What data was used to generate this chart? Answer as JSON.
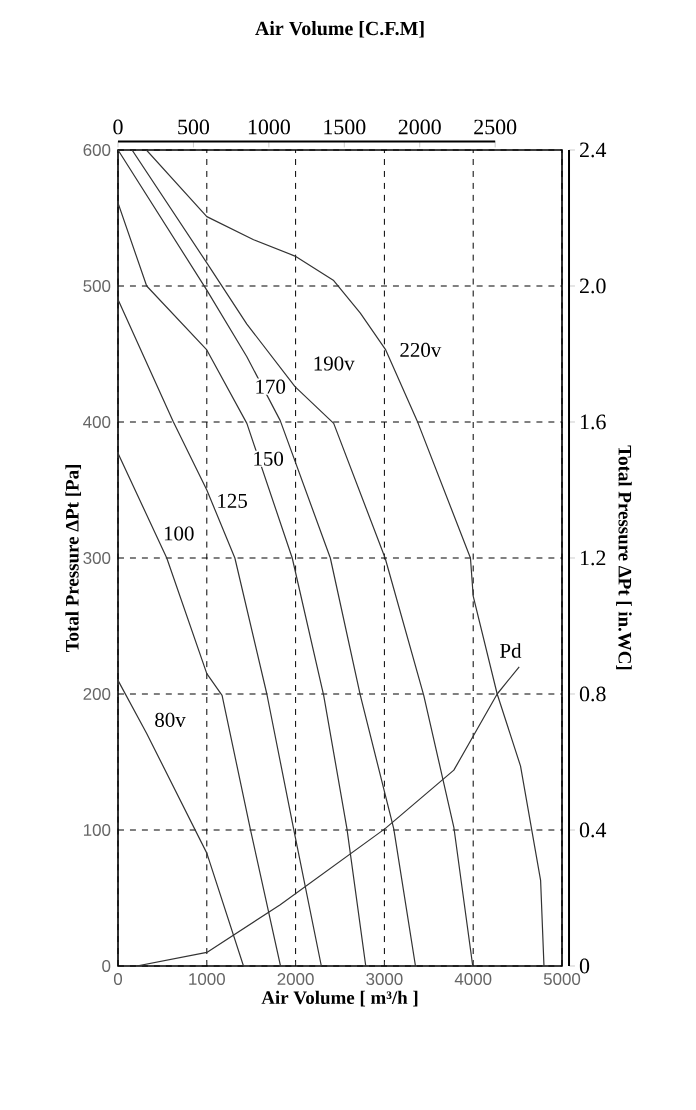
{
  "chart_data": {
    "type": "line",
    "x2label": "Air Volume [C.F.M]",
    "xlabel": "Air Volume [ m³/h ]",
    "ylabel": "Total Pressure ΔPt [Pa]",
    "y2label": "Total Pressure ΔPt [ in.WC]",
    "xlim": [
      0,
      5000
    ],
    "xticks": [
      0,
      1000,
      2000,
      3000,
      4000,
      5000
    ],
    "ylim": [
      0,
      600
    ],
    "yticks": [
      0,
      100,
      200,
      300,
      400,
      500,
      600
    ],
    "y2lim": [
      0,
      2.4
    ],
    "y2ticks": [
      0,
      0.4,
      0.8,
      1.2,
      1.6,
      {
        "value": 2,
        "label": "2.0"
      },
      2.4
    ],
    "x2lim": [
      0,
      2943
    ],
    "x2ticks": [
      0,
      500,
      1000,
      1500,
      2000,
      2500
    ],
    "grid": true,
    "marker": "none",
    "line_style": "solid",
    "series": [
      {
        "color": "#333333",
        "x": [
          320,
          1000,
          1527,
          1993,
          2429,
          2729,
          3015,
          3368,
          3969,
          4000,
          4270,
          4533,
          4759,
          4797
        ],
        "values": [
          600,
          551,
          534,
          522,
          504,
          480,
          453,
          401,
          300,
          272,
          200,
          147,
          63,
          0
        ]
      },
      {
        "color": "#333333",
        "x": [
          158,
          1000,
          1451,
          1993,
          2429,
          3008,
          3443,
          3782,
          3995
        ],
        "values": [
          600,
          517,
          472,
          426,
          399,
          300,
          199,
          102,
          0
        ]
      },
      {
        "color": "#333333",
        "x": [
          0,
          1000,
          1451,
          1827,
          2391,
          2729,
          3105,
          3350
        ],
        "values": [
          600,
          497,
          448,
          401,
          300,
          199,
          101,
          0
        ]
      },
      {
        "color": "#333333",
        "x": [
          0,
          323,
          1000,
          1451,
          1962,
          2316,
          2578,
          2790
        ],
        "values": [
          561,
          500,
          453,
          399,
          300,
          199,
          101,
          0
        ]
      },
      {
        "color": "#333333",
        "x": [
          0,
          624,
          1000,
          1316,
          1676,
          1977,
          2290
        ],
        "values": [
          490,
          400,
          350,
          300,
          200,
          101,
          0
        ]
      },
      {
        "color": "#333333",
        "x": [
          0,
          549,
          1000,
          1172,
          1489,
          1830
        ],
        "values": [
          377,
          300,
          215,
          199,
          101,
          0
        ]
      },
      {
        "color": "#333333",
        "x": [
          0,
          323,
          1000,
          1413
        ],
        "values": [
          210,
          171,
          83,
          0
        ]
      },
      {
        "color": "#333333",
        "x": [
          210,
          1000,
          1827,
          3008,
          3782,
          4270,
          4518
        ],
        "values": [
          0,
          10,
          45,
          101,
          144,
          200,
          220
        ]
      }
    ],
    "annotations": [
      {
        "text": "220v",
        "x": 3405,
        "y": 453
      },
      {
        "text": "190v",
        "x": 2429,
        "y": 443
      },
      {
        "text": "170",
        "x": 1714,
        "y": 426
      },
      {
        "text": "150",
        "x": 1691,
        "y": 373
      },
      {
        "text": "125",
        "x": 1285,
        "y": 342
      },
      {
        "text": "100",
        "x": 684,
        "y": 318
      },
      {
        "text": "80v",
        "x": 586,
        "y": 181
      },
      {
        "text": "Pd",
        "x": 4420,
        "y": 232
      }
    ]
  }
}
